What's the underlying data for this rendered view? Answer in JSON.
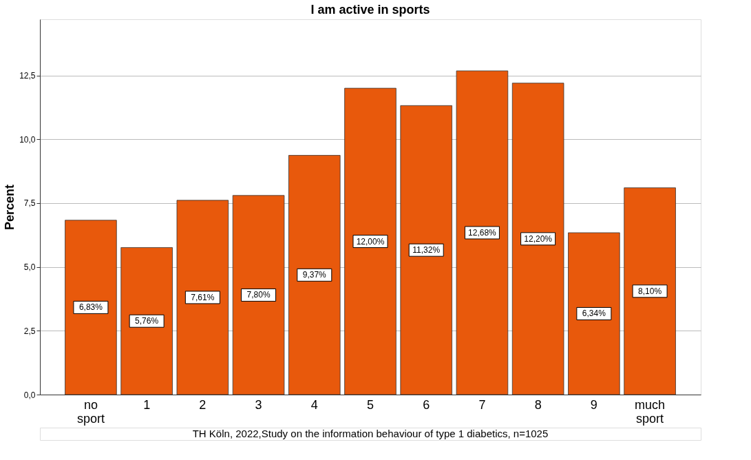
{
  "chart_data": {
    "type": "bar",
    "title": "I am active in sports",
    "ylabel": "Percent",
    "categories": [
      "no sport",
      "1",
      "2",
      "3",
      "4",
      "5",
      "6",
      "7",
      "8",
      "9",
      "much sport"
    ],
    "values": [
      6.83,
      5.76,
      7.61,
      7.8,
      9.37,
      12.0,
      11.32,
      12.68,
      12.2,
      6.34,
      8.1
    ],
    "value_labels": [
      "6,83%",
      "5,76%",
      "7,61%",
      "7,80%",
      "9,37%",
      "12,00%",
      "11,32%",
      "12,68%",
      "12,20%",
      "6,34%",
      "8,10%"
    ],
    "color": "#e8590c",
    "ylim": [
      0,
      14.7
    ],
    "yticks": [
      {
        "value": 0,
        "label": "0,0"
      },
      {
        "value": 2.5,
        "label": "2,5"
      },
      {
        "value": 5,
        "label": "5,0"
      },
      {
        "value": 7.5,
        "label": "7,5"
      },
      {
        "value": 10,
        "label": "10,0"
      },
      {
        "value": 12.5,
        "label": "12,5"
      }
    ],
    "grid": "y",
    "annotations": [
      "TH Köln, 2022,Study on the information behaviour of type 1 diabetics, n=1025"
    ]
  }
}
